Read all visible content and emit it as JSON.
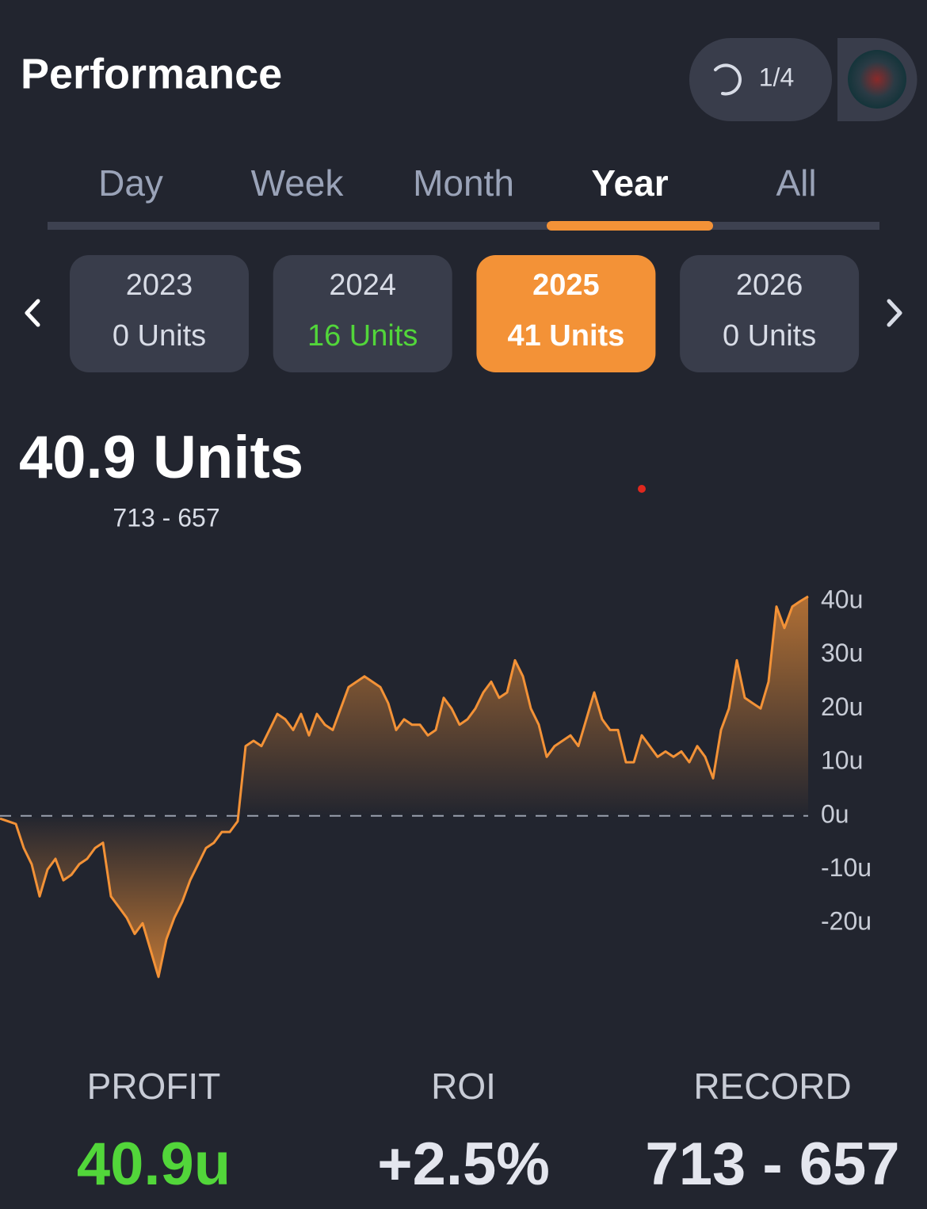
{
  "header": {
    "title": "Performance",
    "progress": "1/4"
  },
  "tabs": {
    "items": [
      "Day",
      "Week",
      "Month",
      "Year",
      "All"
    ],
    "selected": 3
  },
  "years": {
    "items": [
      {
        "year": "2023",
        "units": "0 Units",
        "color": "#d8dce6"
      },
      {
        "year": "2024",
        "units": "16 Units",
        "color": "#52d63a"
      },
      {
        "year": "2025",
        "units": "41 Units",
        "color": "#ffffff"
      },
      {
        "year": "2026",
        "units": "0 Units",
        "color": "#d8dce6"
      }
    ],
    "selected": 2
  },
  "summary": {
    "value": "40.9 Units",
    "record": "713 - 657"
  },
  "chart_data": {
    "type": "line",
    "color": "#f39237",
    "values": [
      -0.5,
      -1,
      -1.5,
      -6,
      -9,
      -15,
      -10,
      -8,
      -12,
      -11,
      -9,
      -8,
      -6,
      -5,
      -15,
      -17,
      -19,
      -22,
      -20,
      -25,
      -30,
      -23,
      -19,
      -16,
      -12,
      -9,
      -6,
      -5,
      -3,
      -3,
      -1,
      13,
      14,
      13,
      16,
      19,
      18,
      16,
      19,
      15,
      19,
      17,
      16,
      20,
      24,
      25,
      26,
      25,
      24,
      21,
      16,
      18,
      17,
      17,
      15,
      16,
      22,
      20,
      17,
      18,
      20,
      23,
      25,
      22,
      23,
      29,
      26,
      20,
      17,
      11,
      13,
      14,
      15,
      13,
      18,
      23,
      18,
      16,
      16,
      10,
      10,
      15,
      13,
      11,
      12,
      11,
      12,
      10,
      13,
      11,
      7,
      16,
      20,
      29,
      22,
      21,
      20,
      25,
      39,
      35,
      39,
      40,
      40.9
    ],
    "ylim": [
      -30,
      45
    ],
    "yticks": [
      {
        "value": 40,
        "label": "40u"
      },
      {
        "value": 30,
        "label": "30u"
      },
      {
        "value": 20,
        "label": "20u"
      },
      {
        "value": 10,
        "label": "10u"
      },
      {
        "value": 0,
        "label": "0u"
      },
      {
        "value": -10,
        "label": "-10u"
      },
      {
        "value": -20,
        "label": "-20u"
      }
    ],
    "zero_line": true
  },
  "stats": [
    {
      "label": "PROFIT",
      "value": "40.9u",
      "color": "#52d63a"
    },
    {
      "label": "ROI",
      "value": "+2.5%",
      "color": "#e4e6ee"
    },
    {
      "label": "RECORD",
      "value": "713 - 657",
      "color": "#e4e6ee"
    }
  ]
}
